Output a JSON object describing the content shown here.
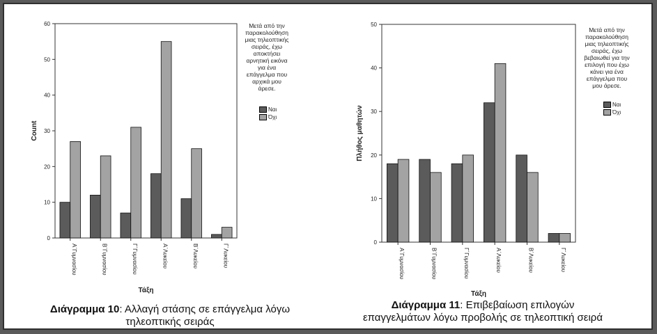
{
  "colors": {
    "nai": "#5b5b5b",
    "oxi": "#a3a3a3",
    "outline": "#111111"
  },
  "chart_data": [
    {
      "type": "bar",
      "categories": [
        "Α΄Γυμνασίου",
        "Β΄Γυμνασίου",
        "Γ΄Γυμνασίου",
        "Α΄Λυκείου",
        "Β΄Λυκείου",
        "Γ΄Λυκείου"
      ],
      "series": [
        {
          "name": "Ναι",
          "values": [
            10,
            12,
            7,
            18,
            11,
            1
          ]
        },
        {
          "name": "Όχι",
          "values": [
            27,
            23,
            31,
            55,
            25,
            3
          ]
        }
      ],
      "xlabel": "Τάξη",
      "ylabel": "Count",
      "ylim": [
        0,
        60
      ],
      "yticks": [
        0,
        10,
        20,
        30,
        40,
        50,
        60
      ],
      "legend_title": [
        "Μετά από την",
        "παρακολούθηση",
        "μιας τηλεοπτικής",
        "σειράς, έχω",
        "αποκτήσει",
        "αρνητική εικόνα",
        "για ένα",
        "επάγγελμα που",
        "αρχικά μου",
        "άρεσε."
      ],
      "legend_placement": "right",
      "caption_bold": "Διάγραμμα 10",
      "caption_text": ": Αλλαγή στάσης σε επάγγελμα λόγω",
      "caption_text2": "τηλεοπτικής σειράς"
    },
    {
      "type": "bar",
      "categories": [
        "Α΄Γυμνασίου",
        "Β΄Γυμνασίου",
        "Γ΄Γυμνασίου",
        "Α΄Λυκείου",
        "Β΄Λυκείου",
        "Γ΄Λυκείου"
      ],
      "series": [
        {
          "name": "Ναι",
          "values": [
            18,
            19,
            18,
            32,
            20,
            2
          ]
        },
        {
          "name": "Όχι",
          "values": [
            19,
            16,
            20,
            41,
            16,
            2
          ]
        }
      ],
      "xlabel": "Τάξη",
      "ylabel": "Πλήθος μαθητών",
      "ylim": [
        0,
        50
      ],
      "yticks": [
        0,
        10,
        20,
        30,
        40,
        50
      ],
      "legend_title": [
        "Μετά από την",
        "παρακολούθηση",
        "μιας τηλεοπτικής",
        "σειράς, έχω",
        "βεβαιωθεί για την",
        "επιλογή που έχω",
        "κάνει για ένα",
        "επάγγελμα που",
        "μου άρεσε."
      ],
      "legend_placement": "right",
      "caption_bold": "Διάγραμμα 11",
      "caption_text": ": Επιβεβαίωση επιλογών",
      "caption_text2": "επαγγελμάτων λόγω προβολής σε τηλεοπτική σειρά"
    }
  ]
}
